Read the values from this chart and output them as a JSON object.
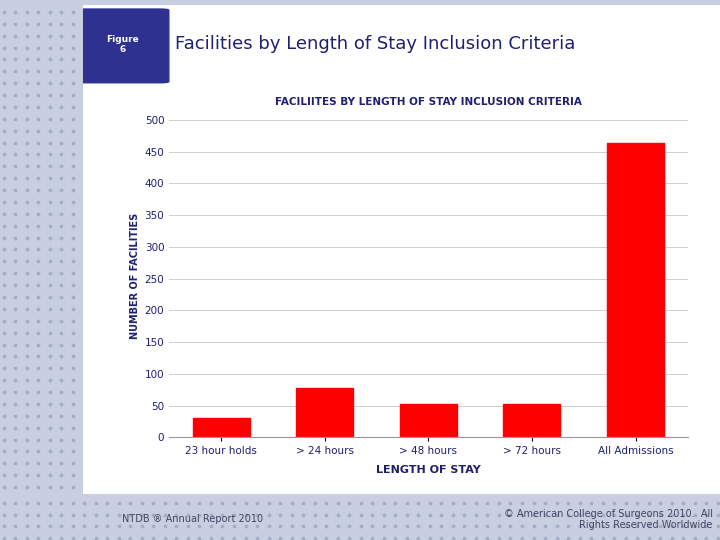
{
  "chart_title": "FACILIITES BY LENGTH OF STAY INCLUSION CRITERIA",
  "header_title": "Facilities by Length of Stay Inclusion Criteria",
  "figure_label": "Figure\n6",
  "categories": [
    "23 hour holds",
    "> 24 hours",
    "> 48 hours",
    "> 72 hours",
    "All Admissions"
  ],
  "values": [
    30,
    78,
    53,
    52,
    463
  ],
  "bar_color": "#FF0000",
  "ylabel": "NUMBER OF FACILITIES",
  "xlabel": "LENGTH OF STAY",
  "yticks": [
    0,
    50,
    100,
    150,
    200,
    250,
    300,
    350,
    400,
    450,
    500
  ],
  "ylim": [
    0,
    510
  ],
  "dot_bg_color": "#c8cfe0",
  "dot_color": "#b0b8cc",
  "white_bg": "#ffffff",
  "figure_box_color": "#2e3190",
  "footer_left": "NTDB ® Annual Report 2010",
  "footer_right": "© American College of Surgeons 2010.  All\nRights Reserved Worldwide",
  "grid_color": "#d0d0d0",
  "title_color": "#1e2070",
  "axis_label_color": "#1e2070",
  "tick_label_color": "#1e2070"
}
